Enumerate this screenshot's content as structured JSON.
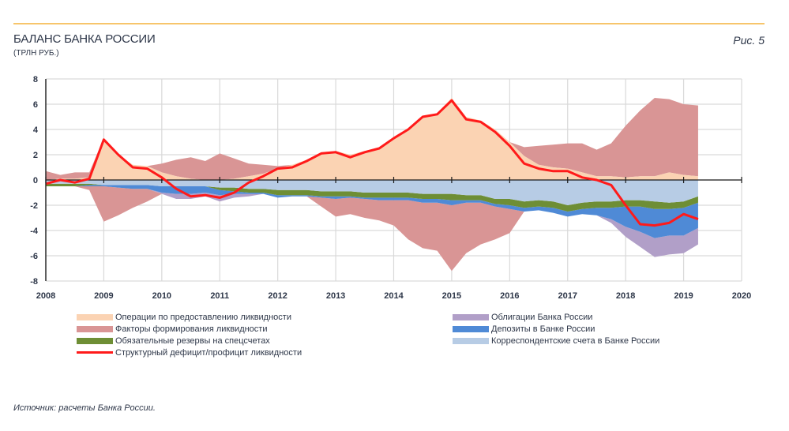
{
  "header": {
    "title": "БАЛАНС БАНКА РОССИИ",
    "subtitle": "(ТРЛН РУБ.)",
    "figure_label": "Рис. 5"
  },
  "source": "Источник: расчеты Банка России.",
  "colors": {
    "accent_rule": "#f7c56b",
    "operations": "#fbd3b3",
    "factors": "#d99595",
    "required_reserves": "#6e8e35",
    "structural_line": "#ff1a1a",
    "bonds": "#b19fc8",
    "deposits": "#4f8ad6",
    "correspondent": "#b7cce5"
  },
  "legend": {
    "left": [
      {
        "key": "operations",
        "label": "Операции по предоставлению ликвидности"
      },
      {
        "key": "factors",
        "label": "Факторы формирования ликвидности"
      },
      {
        "key": "required_reserves",
        "label": "Обязательные резервы на спецсчетах"
      },
      {
        "key": "structural_line",
        "label": "Структурный дефицит/профицит ликвидности"
      }
    ],
    "right": [
      {
        "key": "bonds",
        "label": "Облигации Банка России"
      },
      {
        "key": "deposits",
        "label": "Депозиты в Банке России"
      },
      {
        "key": "correspondent",
        "label": "Корреспондентские счета в Банке России"
      }
    ]
  },
  "chart_data": {
    "type": "area",
    "title": "БАЛАНС БАНКА РОССИИ",
    "ylabel": "трлн руб.",
    "xlabel": "",
    "xlim": [
      2008,
      2020
    ],
    "ylim": [
      -8,
      8
    ],
    "x_ticks": [
      "2008",
      "2009",
      "2010",
      "2011",
      "2012",
      "2013",
      "2014",
      "2015",
      "2016",
      "2017",
      "2018",
      "2019",
      "2020"
    ],
    "y_ticks": [
      "8",
      "6",
      "4",
      "2",
      "0",
      "-2",
      "-4",
      "-6",
      "-8"
    ],
    "grid": true,
    "legend_position": "bottom",
    "x": [
      2008.0,
      2008.25,
      2008.5,
      2008.75,
      2009.0,
      2009.25,
      2009.5,
      2009.75,
      2010.0,
      2010.25,
      2010.5,
      2010.75,
      2011.0,
      2011.25,
      2011.5,
      2011.75,
      2012.0,
      2012.25,
      2012.5,
      2012.75,
      2013.0,
      2013.25,
      2013.5,
      2013.75,
      2014.0,
      2014.25,
      2014.5,
      2014.75,
      2015.0,
      2015.25,
      2015.5,
      2015.75,
      2016.0,
      2016.25,
      2016.5,
      2016.75,
      2017.0,
      2017.25,
      2017.5,
      2017.75,
      2018.0,
      2018.25,
      2018.5,
      2018.75,
      2019.0,
      2019.25
    ],
    "series": [
      {
        "name": "Операции по предоставлению ликвидности",
        "key": "operations",
        "kind": "area-positive",
        "values": [
          0.0,
          0.1,
          0.1,
          0.2,
          3.3,
          2.0,
          1.2,
          1.1,
          0.6,
          0.3,
          0.1,
          0.0,
          0.0,
          0.1,
          0.3,
          0.5,
          0.9,
          1.2,
          1.6,
          2.2,
          2.3,
          2.0,
          2.3,
          2.6,
          3.4,
          4.1,
          5.1,
          5.3,
          6.5,
          5.0,
          4.7,
          4.0,
          3.0,
          1.9,
          1.2,
          1.0,
          0.9,
          0.6,
          0.3,
          0.3,
          0.2,
          0.3,
          0.3,
          0.6,
          0.4,
          0.3
        ]
      },
      {
        "name": "Факторы формирования ликвидности (положительные)",
        "key": "factors",
        "kind": "area-positive-stacked",
        "values": [
          0.7,
          0.3,
          0.5,
          0.4,
          0.0,
          0.0,
          0.0,
          0.0,
          0.7,
          1.3,
          1.7,
          1.5,
          2.1,
          1.6,
          1.0,
          0.7,
          0.2,
          0.0,
          0.0,
          0.0,
          0.0,
          0.0,
          0.0,
          0.0,
          0.0,
          0.0,
          0.0,
          0.0,
          0.0,
          0.0,
          0.0,
          0.0,
          0.0,
          0.7,
          1.5,
          1.8,
          2.0,
          2.3,
          2.1,
          2.6,
          4.1,
          5.2,
          6.2,
          5.8,
          5.6,
          5.6
        ]
      },
      {
        "name": "Корреспондентские счета в Банке России",
        "key": "correspondent",
        "kind": "area-negative",
        "values": [
          -0.3,
          -0.3,
          -0.3,
          -0.3,
          -0.4,
          -0.4,
          -0.4,
          -0.4,
          -0.5,
          -0.5,
          -0.5,
          -0.5,
          -0.6,
          -0.6,
          -0.7,
          -0.7,
          -0.8,
          -0.8,
          -0.8,
          -0.9,
          -0.9,
          -0.9,
          -1.0,
          -1.0,
          -1.0,
          -1.0,
          -1.1,
          -1.1,
          -1.1,
          -1.2,
          -1.2,
          -1.5,
          -1.5,
          -1.7,
          -1.6,
          -1.7,
          -2.0,
          -1.8,
          -1.7,
          -1.7,
          -1.6,
          -1.6,
          -1.7,
          -1.8,
          -1.7,
          -1.3
        ]
      },
      {
        "name": "Обязательные резервы на спецсчетах",
        "key": "required_reserves",
        "kind": "area-negative-stacked",
        "values": [
          -0.2,
          -0.2,
          -0.2,
          -0.1,
          0.0,
          0.0,
          0.0,
          0.0,
          0.0,
          0.0,
          0.0,
          0.0,
          -0.2,
          -0.3,
          -0.3,
          -0.3,
          -0.4,
          -0.4,
          -0.4,
          -0.4,
          -0.4,
          -0.4,
          -0.4,
          -0.4,
          -0.4,
          -0.4,
          -0.4,
          -0.4,
          -0.5,
          -0.4,
          -0.4,
          -0.4,
          -0.5,
          -0.5,
          -0.5,
          -0.5,
          -0.5,
          -0.5,
          -0.5,
          -0.5,
          -0.5,
          -0.5,
          -0.6,
          -0.5,
          -0.5,
          -0.5
        ]
      },
      {
        "name": "Депозиты в Банке России",
        "key": "deposits",
        "kind": "area-negative-stacked",
        "values": [
          0.0,
          0.0,
          0.0,
          -0.1,
          -0.1,
          -0.2,
          -0.3,
          -0.3,
          -0.5,
          -0.6,
          -0.6,
          -0.5,
          -0.4,
          -0.2,
          -0.1,
          -0.1,
          -0.2,
          -0.1,
          -0.1,
          -0.1,
          -0.2,
          -0.1,
          -0.1,
          -0.2,
          -0.2,
          -0.2,
          -0.3,
          -0.3,
          -0.4,
          -0.2,
          -0.2,
          -0.2,
          -0.3,
          -0.3,
          -0.3,
          -0.4,
          -0.4,
          -0.4,
          -0.6,
          -0.9,
          -1.6,
          -2.0,
          -2.3,
          -2.1,
          -2.2,
          -2.0
        ]
      },
      {
        "name": "Облигации Банка России",
        "key": "bonds",
        "kind": "area-negative-stacked",
        "values": [
          0.0,
          0.0,
          0.0,
          0.0,
          0.0,
          0.0,
          0.0,
          0.0,
          -0.1,
          -0.4,
          -0.4,
          -0.3,
          -0.5,
          -0.3,
          -0.2,
          0.0,
          0.0,
          0.0,
          0.0,
          0.0,
          0.0,
          0.0,
          0.0,
          0.0,
          0.0,
          0.0,
          0.0,
          0.0,
          0.0,
          0.0,
          0.0,
          0.0,
          0.0,
          0.0,
          0.0,
          0.0,
          0.0,
          0.0,
          0.0,
          -0.3,
          -0.8,
          -1.2,
          -1.5,
          -1.5,
          -1.4,
          -1.3
        ]
      },
      {
        "name": "Факторы формирования ликвидности (отрицательные)",
        "key": "factors",
        "kind": "area-negative-stacked",
        "values": [
          0.0,
          0.0,
          0.0,
          -0.3,
          -2.8,
          -2.2,
          -1.5,
          -1.0,
          0.0,
          0.0,
          0.0,
          0.0,
          0.0,
          0.0,
          0.0,
          0.0,
          0.0,
          0.0,
          0.0,
          -0.7,
          -1.4,
          -1.3,
          -1.5,
          -1.6,
          -2.0,
          -3.1,
          -3.6,
          -3.8,
          -5.2,
          -4.0,
          -3.3,
          -2.6,
          -1.9,
          0.0,
          0.0,
          0.0,
          0.0,
          0.0,
          0.0,
          0.0,
          0.0,
          0.0,
          0.0,
          0.0,
          0.0,
          0.0
        ]
      },
      {
        "name": "Структурный дефицит/профицит ликвидности",
        "key": "structural_line",
        "kind": "line",
        "values": [
          -0.3,
          0.0,
          -0.2,
          0.1,
          3.2,
          2.0,
          1.0,
          0.9,
          0.2,
          -0.7,
          -1.3,
          -1.2,
          -1.4,
          -1.0,
          -0.2,
          0.3,
          0.9,
          1.0,
          1.5,
          2.1,
          2.2,
          1.8,
          2.2,
          2.5,
          3.3,
          4.0,
          5.0,
          5.2,
          6.3,
          4.8,
          4.6,
          3.8,
          2.7,
          1.3,
          0.9,
          0.7,
          0.7,
          0.2,
          0.0,
          -0.4,
          -2.0,
          -3.5,
          -3.6,
          -3.4,
          -2.7,
          -3.1
        ]
      }
    ]
  }
}
